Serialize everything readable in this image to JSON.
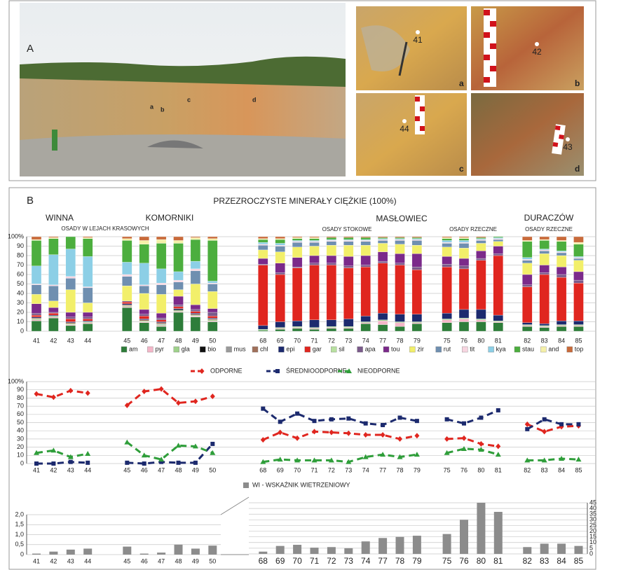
{
  "panel_a": {
    "label": "A",
    "photo_labels": [
      "a",
      "b",
      "c",
      "d"
    ],
    "insets": [
      {
        "label": "a",
        "sample": "41"
      },
      {
        "label": "b",
        "sample": "42"
      },
      {
        "label": "c",
        "sample": "44"
      },
      {
        "label": "d",
        "sample": "43"
      }
    ]
  },
  "panel_b": {
    "label": "B"
  },
  "chart_data": [
    {
      "type": "stacked_bar",
      "title": "PRZEZROCZYSTE MINERAŁY CIĘŻKIE (100%)",
      "group_labels": [
        "WINNA",
        "OSADY W LEJACH KRASOWYCH",
        "KOMORNIKI",
        "MASŁOWIEC",
        "OSADY STOKOWE",
        "OSADY RZECZNE",
        "DURACZÓW",
        "OSADY RZECZNE"
      ],
      "categories": [
        "41",
        "42",
        "43",
        "44",
        "45",
        "46",
        "47",
        "48",
        "49",
        "50",
        "68",
        "69",
        "70",
        "71",
        "72",
        "73",
        "74",
        "77",
        "78",
        "79",
        "75",
        "76",
        "80",
        "81",
        "82",
        "83",
        "84",
        "85"
      ],
      "series": [
        {
          "name": "am",
          "color": "#2e7d3a",
          "values": [
            11,
            14,
            6,
            8,
            25,
            9,
            5,
            20,
            15,
            10,
            1,
            2,
            3,
            2,
            3,
            3,
            8,
            7,
            5,
            8,
            9,
            10,
            10,
            9,
            5,
            4,
            5,
            5
          ]
        },
        {
          "name": "pyr",
          "color": "#f4b6c8",
          "values": [
            1,
            1,
            1,
            1,
            1,
            1,
            1,
            1,
            1,
            1,
            0,
            1,
            1,
            1,
            1,
            1,
            1,
            4,
            4,
            1,
            3,
            3,
            2,
            1,
            1,
            1,
            1,
            1
          ]
        },
        {
          "name": "gla",
          "color": "#9fd18b",
          "values": [
            1,
            1,
            1,
            1,
            1,
            1,
            1,
            1,
            1,
            1,
            1,
            1,
            1,
            1,
            1,
            1,
            1,
            1,
            1,
            1,
            1,
            1,
            1,
            1,
            1,
            1,
            1,
            1
          ]
        },
        {
          "name": "bio",
          "color": "#111111",
          "values": [
            0,
            0,
            0,
            0,
            0,
            0,
            0,
            1,
            0,
            0,
            0,
            0,
            0,
            0,
            0,
            0,
            0,
            0,
            0,
            0,
            0,
            0,
            0,
            0,
            0,
            0,
            0,
            0
          ]
        },
        {
          "name": "mus",
          "color": "#9a9a9a",
          "values": [
            0,
            0,
            0,
            0,
            0,
            0,
            1,
            0,
            0,
            0,
            0,
            0,
            0,
            0,
            0,
            0,
            0,
            0,
            0,
            0,
            0,
            0,
            0,
            0,
            0,
            0,
            0,
            0
          ]
        },
        {
          "name": "chl",
          "color": "#a0705a",
          "values": [
            1,
            0,
            1,
            0,
            1,
            1,
            1,
            0,
            1,
            1,
            0,
            0,
            0,
            0,
            0,
            0,
            0,
            0,
            0,
            0,
            0,
            0,
            0,
            0,
            0,
            0,
            0,
            0
          ]
        },
        {
          "name": "epi",
          "color": "#1c2a6e",
          "values": [
            1,
            1,
            1,
            1,
            1,
            1,
            1,
            1,
            1,
            1,
            4,
            6,
            6,
            8,
            7,
            8,
            6,
            7,
            8,
            8,
            6,
            9,
            10,
            6,
            2,
            2,
            4,
            4
          ]
        },
        {
          "name": "gar",
          "color": "#e0261f",
          "values": [
            2,
            2,
            3,
            2,
            2,
            3,
            2,
            2,
            2,
            2,
            64,
            50,
            56,
            58,
            58,
            54,
            52,
            53,
            52,
            47,
            49,
            43,
            52,
            63,
            38,
            52,
            46,
            40
          ]
        },
        {
          "name": "sil",
          "color": "#b8e0a0",
          "values": [
            0,
            0,
            0,
            0,
            0,
            0,
            0,
            0,
            0,
            0,
            0,
            0,
            0,
            0,
            0,
            0,
            0,
            0,
            0,
            0,
            0,
            0,
            0,
            0,
            0,
            0,
            0,
            0
          ]
        },
        {
          "name": "apa",
          "color": "#7a5a8a",
          "values": [
            2,
            1,
            2,
            2,
            1,
            2,
            2,
            2,
            2,
            4,
            1,
            2,
            1,
            2,
            2,
            2,
            2,
            2,
            2,
            3,
            3,
            3,
            2,
            2,
            2,
            2,
            3,
            3
          ]
        },
        {
          "name": "tou",
          "color": "#7b2a8a",
          "values": [
            10,
            5,
            5,
            5,
            0,
            5,
            5,
            9,
            5,
            4,
            6,
            10,
            10,
            8,
            8,
            10,
            10,
            10,
            10,
            14,
            8,
            8,
            8,
            8,
            11,
            8,
            8,
            9
          ]
        },
        {
          "name": "zir",
          "color": "#f2ef6a",
          "values": [
            10,
            7,
            24,
            10,
            16,
            17,
            20,
            7,
            22,
            18,
            9,
            12,
            11,
            10,
            11,
            12,
            11,
            9,
            10,
            9,
            10,
            11,
            8,
            5,
            12,
            12,
            12,
            12
          ]
        },
        {
          "name": "rut",
          "color": "#6f8fb0",
          "values": [
            10,
            16,
            12,
            16,
            10,
            8,
            10,
            8,
            14,
            8,
            5,
            6,
            5,
            4,
            4,
            4,
            4,
            3,
            4,
            5,
            4,
            5,
            3,
            2,
            3,
            3,
            3,
            2
          ]
        },
        {
          "name": "tit",
          "color": "#f7d5e0",
          "values": [
            1,
            1,
            2,
            1,
            2,
            1,
            2,
            2,
            2,
            1,
            1,
            1,
            1,
            1,
            1,
            1,
            1,
            1,
            1,
            1,
            1,
            1,
            1,
            1,
            1,
            1,
            1,
            1
          ]
        },
        {
          "name": "kya",
          "color": "#8ccfe6",
          "values": [
            19,
            32,
            29,
            32,
            13,
            23,
            15,
            9,
            8,
            2,
            2,
            2,
            1,
            1,
            1,
            1,
            1,
            1,
            1,
            1,
            2,
            2,
            1,
            1,
            2,
            1,
            1,
            1
          ]
        },
        {
          "name": "stau",
          "color": "#4cae3e",
          "values": [
            27,
            17,
            13,
            19,
            23,
            20,
            27,
            30,
            23,
            43,
            3,
            4,
            2,
            2,
            2,
            2,
            2,
            1,
            1,
            1,
            2,
            2,
            1,
            1,
            17,
            9,
            10,
            13
          ]
        },
        {
          "name": "and",
          "color": "#f5f0a8",
          "values": [
            1,
            1,
            0,
            1,
            2,
            4,
            4,
            3,
            2,
            2,
            1,
            1,
            1,
            1,
            0,
            0,
            0,
            0,
            0,
            0,
            1,
            1,
            0,
            0,
            1,
            1,
            1,
            2
          ]
        },
        {
          "name": "top",
          "color": "#c86a3a",
          "values": [
            3,
            1,
            0,
            1,
            2,
            4,
            3,
            4,
            1,
            2,
            2,
            2,
            1,
            1,
            1,
            1,
            1,
            1,
            1,
            1,
            1,
            1,
            1,
            0,
            4,
            3,
            4,
            6
          ]
        }
      ],
      "ylim": [
        0,
        100
      ],
      "yticks": [
        0,
        10,
        20,
        30,
        40,
        50,
        60,
        70,
        80,
        90,
        {
          "value": 100,
          "label": "100%"
        }
      ],
      "grid": true
    },
    {
      "type": "line",
      "categories": [
        "41",
        "42",
        "43",
        "44",
        "45",
        "46",
        "47",
        "48",
        "49",
        "50",
        "68",
        "69",
        "70",
        "71",
        "72",
        "73",
        "74",
        "77",
        "78",
        "79",
        "75",
        "76",
        "80",
        "81",
        "82",
        "83",
        "84",
        "85"
      ],
      "series": [
        {
          "name": "ODPORNE",
          "color": "#e0261f",
          "marker": "diamond",
          "values": [
            85,
            81,
            89,
            86,
            71,
            88,
            91,
            74,
            76,
            82,
            29,
            38,
            31,
            39,
            38,
            37,
            35,
            35,
            30,
            34,
            30,
            31,
            24,
            21,
            48,
            39,
            45,
            46
          ]
        },
        {
          "name": "ŚREDNIOODPORNE",
          "color": "#1c2a6e",
          "marker": "square",
          "values": [
            0,
            0,
            2,
            1,
            1,
            0,
            2,
            1,
            1,
            24,
            67,
            51,
            61,
            52,
            54,
            55,
            49,
            47,
            56,
            52,
            54,
            49,
            56,
            65,
            42,
            54,
            48,
            48
          ]
        },
        {
          "name": "NIEODPORNE",
          "color": "#2f9e3a",
          "marker": "triangle",
          "values": [
            13,
            16,
            8,
            12,
            26,
            10,
            5,
            22,
            21,
            13,
            2,
            5,
            4,
            4,
            4,
            2,
            8,
            11,
            8,
            11,
            13,
            18,
            17,
            11,
            4,
            4,
            6,
            5
          ]
        }
      ],
      "ylim": [
        0,
        100
      ],
      "yticks": [
        0,
        10,
        20,
        30,
        40,
        50,
        60,
        70,
        80,
        90,
        {
          "value": 100,
          "label": "100%"
        }
      ],
      "grid": true
    },
    {
      "type": "bar",
      "categories": [
        "41",
        "42",
        "43",
        "44",
        "45",
        "46",
        "47",
        "48",
        "49",
        "50",
        "68",
        "69",
        "70",
        "71",
        "72",
        "73",
        "74",
        "77",
        "78",
        "79",
        "75",
        "76",
        "80",
        "81",
        "82",
        "83",
        "84",
        "85"
      ],
      "series": [
        {
          "name": "WI - WSKAŹNIK WIETRZENIOWY",
          "color": "#8c8c8c",
          "values": [
            0.05,
            0.15,
            0.25,
            0.3,
            0.4,
            0.05,
            0.1,
            0.5,
            0.3,
            0.45,
            null,
            null,
            null,
            null,
            null,
            null,
            null,
            null,
            null,
            null,
            null,
            null,
            null,
            null,
            null,
            null,
            null,
            null
          ]
        },
        {
          "axis": "y2",
          "color": "#8c8c8c",
          "values": [
            null,
            null,
            null,
            null,
            null,
            null,
            null,
            null,
            null,
            null,
            2,
            7,
            8,
            5.5,
            6,
            5,
            11,
            14,
            15,
            16,
            17.5,
            30,
            45,
            37,
            6,
            9,
            9,
            7
          ]
        }
      ],
      "ylim": [
        0,
        2
      ],
      "yticks": [
        0,
        {
          "value": 0.5,
          "label": "0,5"
        },
        {
          "value": 1,
          "label": "1,0"
        },
        {
          "value": 1.5,
          "label": "1,5"
        },
        {
          "value": 2,
          "label": "2,0"
        }
      ],
      "y2lim": [
        0,
        45
      ],
      "y2ticks": [
        0,
        5,
        10,
        15,
        20,
        25,
        30,
        35,
        40,
        45
      ],
      "grid": true
    }
  ]
}
